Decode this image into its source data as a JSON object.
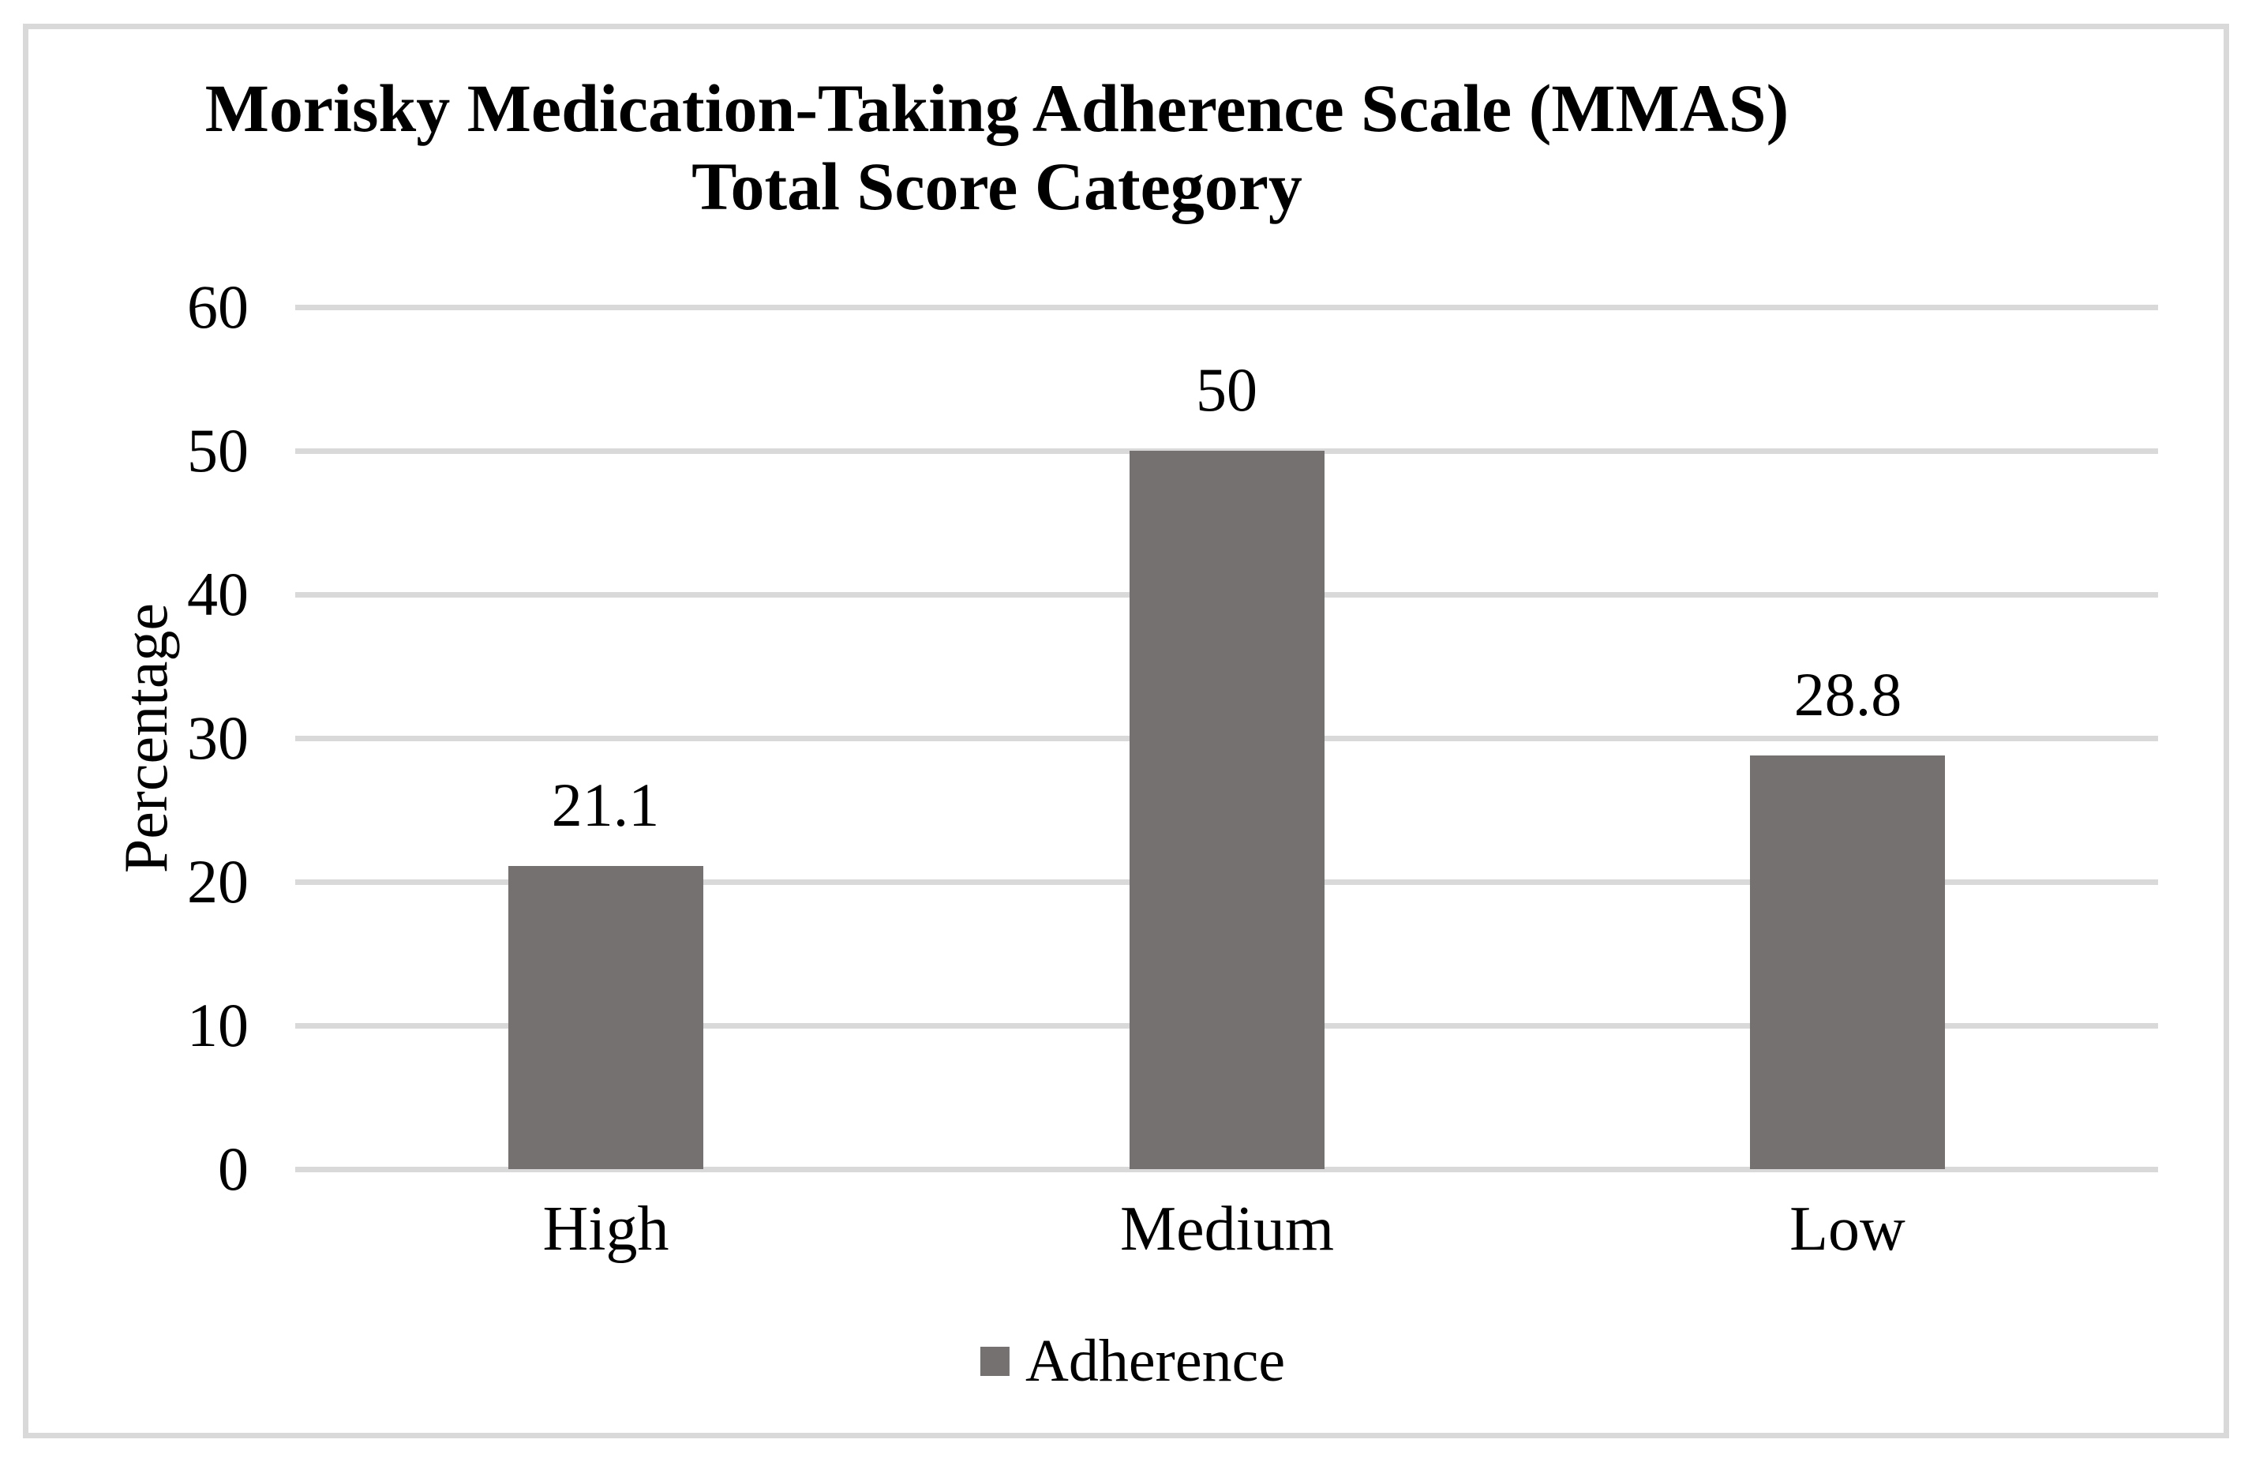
{
  "figure": {
    "title_line1": "Morisky Medication-Taking Adherence Scale (MMAS)",
    "title_line2": "Total Score Category"
  },
  "chart_data": {
    "type": "bar",
    "title": "Morisky Medication-Taking Adherence Scale (MMAS) Total Score Category",
    "categories": [
      "High",
      "Medium",
      "Low"
    ],
    "series": [
      {
        "name": "Adherence",
        "values": [
          21.1,
          50,
          28.8
        ]
      }
    ],
    "data_labels": [
      "21.1",
      "50",
      "28.8"
    ],
    "xlabel": "",
    "ylabel": "Percentage",
    "ylim": [
      0,
      60
    ],
    "yticks": [
      0,
      10,
      20,
      30,
      40,
      50,
      60
    ],
    "grid": true,
    "legend_position": "bottom",
    "bar_color": "#767171",
    "gridline_color": "#D9D9D9",
    "text_color": "#000000"
  },
  "legend": {
    "items": [
      {
        "label": "Adherence",
        "color": "#767171"
      }
    ]
  }
}
